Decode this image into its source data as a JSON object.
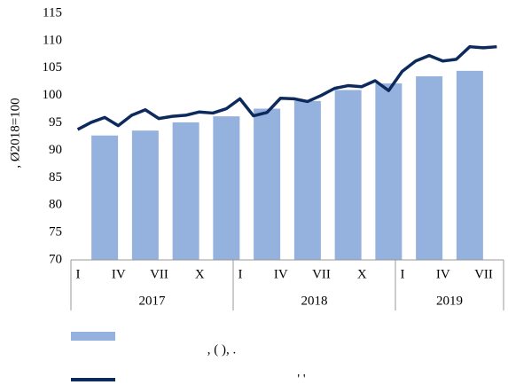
{
  "chart_data": {
    "type": "bar_line",
    "y_axis_label": ", Ø2018=100",
    "categories": [
      "I",
      null,
      null,
      "IV",
      null,
      null,
      "VII",
      null,
      null,
      "X",
      null,
      null,
      "I",
      null,
      null,
      "IV",
      null,
      null,
      "VII",
      null,
      null,
      "X",
      null,
      null,
      "I",
      null,
      null,
      "IV",
      null,
      null,
      "VII",
      null
    ],
    "year_labels": [
      "2017",
      "2018",
      "2019"
    ],
    "series": [
      {
        "name": ", ( ), .",
        "color": "#95b1de",
        "kind": "bar",
        "values": [
          null,
          null,
          92.7,
          null,
          null,
          93.6,
          null,
          null,
          95.1,
          null,
          null,
          96.2,
          null,
          null,
          97.6,
          null,
          null,
          99.0,
          null,
          null,
          101.0,
          null,
          null,
          102.2,
          null,
          null,
          103.5,
          null,
          null,
          104.5,
          null,
          null
        ]
      },
      {
        "name": "' '",
        "color": "#0d2a5c",
        "kind": "line",
        "values": [
          93.8,
          95.1,
          96.0,
          94.5,
          96.4,
          97.4,
          95.8,
          96.2,
          96.4,
          97.0,
          96.8,
          97.6,
          99.4,
          96.3,
          96.9,
          99.5,
          99.4,
          98.9,
          100.0,
          101.3,
          101.8,
          101.6,
          102.7,
          100.9,
          104.4,
          106.3,
          107.3,
          106.3,
          106.6,
          108.9,
          108.7,
          108.9
        ]
      }
    ],
    "ylim": [
      70,
      115
    ],
    "yticks": [
      70,
      75,
      80,
      85,
      90,
      95,
      100,
      105,
      110,
      115
    ]
  }
}
